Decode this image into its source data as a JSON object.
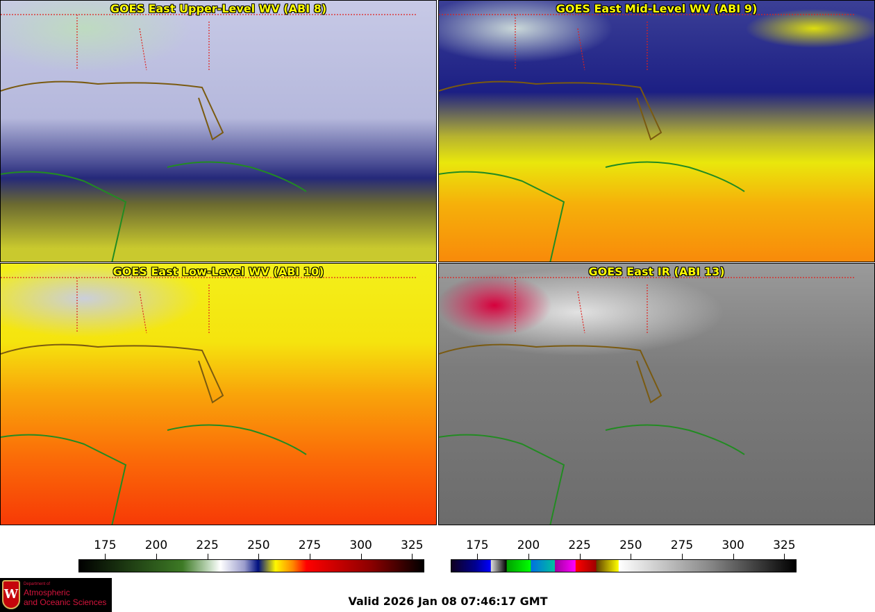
{
  "panels": [
    {
      "title": "GOES East Upper-Level WV (ABI 8)"
    },
    {
      "title": "GOES East Mid-Level WV (ABI 9)"
    },
    {
      "title": "GOES East Low-Level WV (ABI 10)"
    },
    {
      "title": "GOES East IR (ABI 13)"
    }
  ],
  "colorbars": [
    {
      "name": "water-vapor",
      "range_K": [
        162,
        331
      ],
      "ticks": [
        "175",
        "200",
        "225",
        "250",
        "275",
        "300",
        "325"
      ]
    },
    {
      "name": "infrared",
      "range_K": [
        162,
        331
      ],
      "ticks": [
        "175",
        "200",
        "225",
        "250",
        "275",
        "300",
        "325"
      ]
    }
  ],
  "logo": {
    "line1": "Department of",
    "line2": "Atmospheric",
    "line3": "and Oceanic Sciences",
    "crest_letter": "W"
  },
  "valid_time": "Valid 2026 Jan 08 07:46:17 GMT",
  "colors": {
    "coast": "#228b22",
    "borders": "#e0201c",
    "title": "#ffff00"
  }
}
